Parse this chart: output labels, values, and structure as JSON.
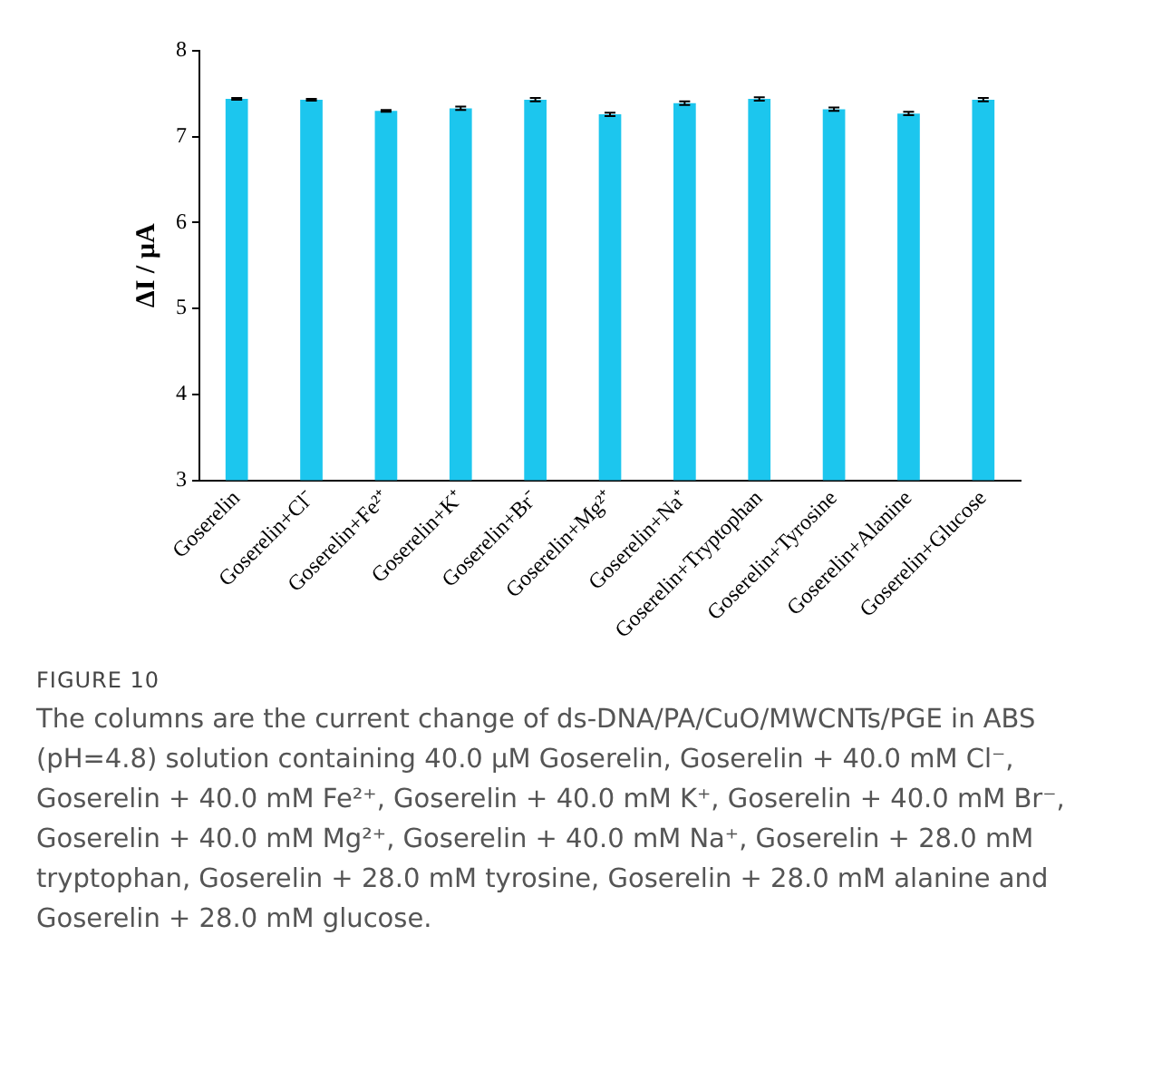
{
  "chart_data": {
    "type": "bar",
    "ylabel": "ΔI / µA",
    "categories": [
      "Goserelin",
      "Goserelin+Cl⁻",
      "Goserelin+Fe²⁺",
      "Goserelin+K⁺",
      "Goserelin+Br⁻",
      "Goserelin+Mg²⁺",
      "Goserelin+Na⁺",
      "Goserelin+Tryptophan",
      "Goserelin+Tyrosine",
      "Goserelin+Alanine",
      "Goserelin+Glucose"
    ],
    "values": [
      7.44,
      7.43,
      7.3,
      7.33,
      7.43,
      7.26,
      7.39,
      7.44,
      7.32,
      7.27,
      7.43
    ],
    "errors": [
      0.01,
      0.01,
      0.01,
      0.02,
      0.02,
      0.02,
      0.02,
      0.02,
      0.02,
      0.02,
      0.02
    ],
    "color": "#1cc6ee",
    "ylim": [
      3,
      8
    ],
    "yticks": [
      3,
      4,
      5,
      6,
      7,
      8
    ],
    "grid": false,
    "legend": false,
    "annotations": [
      "FIGURE 10",
      "The columns are the current change of ds-DNA/PA/CuO/MWCNTs/PGE in ABS (pH=4.8) solution containing 40.0 µM Goserelin, Goserelin + 40.0 mM Cl⁻, Goserelin + 40.0 mM Fe²⁺, Goserelin + 40.0 mM K⁺, Goserelin + 40.0 mM Br⁻, Goserelin + 40.0 mM Mg²⁺, Goserelin + 40.0 mM Na⁺, Goserelin + 28.0 mM tryptophan, Goserelin + 28.0 mM tyrosine, Goserelin + 28.0 mM alanine and Goserelin + 28.0 mM glucose."
    ]
  }
}
